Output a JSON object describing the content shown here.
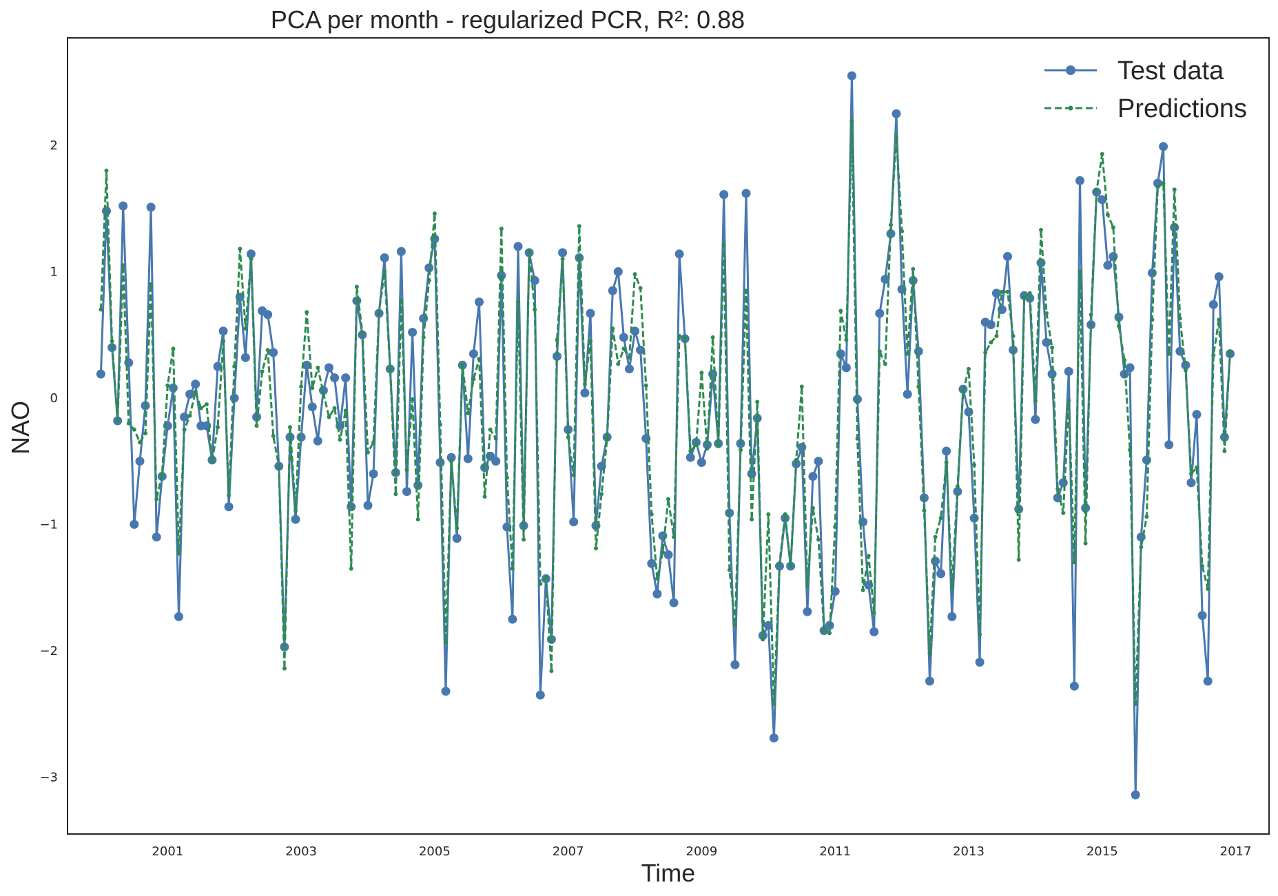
{
  "chart_data": {
    "type": "line",
    "title": "PCA per month - regularized PCR, R²: 0.88",
    "xlabel": "Time",
    "ylabel": "NAO",
    "xlim": [
      1999.5,
      2017.5
    ],
    "ylim": [
      -3.45,
      2.85
    ],
    "x_ticks": [
      2001,
      2003,
      2005,
      2007,
      2009,
      2011,
      2013,
      2015,
      2017
    ],
    "y_ticks": [
      -3,
      -2,
      -1,
      0,
      1,
      2
    ],
    "y_tick_labels": [
      "−3",
      "−2",
      "−1",
      "0",
      "1",
      "2"
    ],
    "x_start": 2000.0,
    "x_step_years": 0.0833333,
    "grid": false,
    "legend_position": "upper-right",
    "series": [
      {
        "name": "Test data",
        "color": "#4878b0",
        "style": "solid-circle",
        "values": [
          0.19,
          1.48,
          0.4,
          -0.18,
          1.52,
          0.28,
          -1.0,
          -0.5,
          -0.06,
          1.51,
          -1.1,
          -0.62,
          -0.22,
          0.08,
          -1.73,
          -0.15,
          0.03,
          0.11,
          -0.22,
          -0.22,
          -0.49,
          0.25,
          0.53,
          -0.86,
          0.0,
          0.8,
          0.32,
          1.14,
          -0.15,
          0.69,
          0.66,
          0.36,
          -0.54,
          -1.97,
          -0.31,
          -0.96,
          -0.31,
          0.26,
          -0.07,
          -0.34,
          0.06,
          0.24,
          0.16,
          -0.22,
          0.16,
          -0.86,
          0.77,
          0.5,
          -0.85,
          -0.6,
          0.67,
          1.11,
          0.23,
          -0.59,
          1.16,
          -0.74,
          0.52,
          -0.69,
          0.63,
          1.03,
          1.26,
          -0.51,
          -2.32,
          -0.47,
          -1.11,
          0.26,
          -0.48,
          0.35,
          0.76,
          -0.55,
          -0.46,
          -0.5,
          0.97,
          -1.02,
          -1.75,
          1.2,
          -1.01,
          1.15,
          0.93,
          -2.35,
          -1.43,
          -1.91,
          0.33,
          1.15,
          -0.25,
          -0.98,
          1.11,
          0.04,
          0.67,
          -1.01,
          -0.54,
          -0.31,
          0.85,
          1.0,
          0.48,
          0.23,
          0.53,
          0.38,
          -0.32,
          -1.31,
          -1.55,
          -1.09,
          -1.24,
          -1.62,
          1.14,
          0.47,
          -0.47,
          -0.35,
          -0.51,
          -0.37,
          0.19,
          -0.36,
          1.61,
          -0.91,
          -2.11,
          -0.36,
          1.62,
          -0.6,
          -0.16,
          -1.88,
          -1.8,
          -2.69,
          -1.33,
          -0.95,
          -1.33,
          -0.52,
          -0.39,
          -1.69,
          -0.62,
          -0.5,
          -1.84,
          -1.8,
          -1.53,
          0.35,
          0.24,
          2.55,
          -0.01,
          -0.98,
          -1.48,
          -1.85,
          0.67,
          0.94,
          1.3,
          2.25,
          0.86,
          0.03,
          0.93,
          0.37,
          -0.79,
          -2.24,
          -1.29,
          -1.39,
          -0.42,
          -1.73,
          -0.74,
          0.07,
          -0.11,
          -0.95,
          -2.09,
          0.6,
          0.58,
          0.83,
          0.7,
          1.12,
          0.38,
          -0.88,
          0.81,
          0.79,
          -0.17,
          1.07,
          0.44,
          0.19,
          -0.79,
          -0.67,
          0.21,
          -2.28,
          1.72,
          -0.87,
          0.58,
          1.63,
          1.57,
          1.05,
          1.12,
          0.64,
          0.19,
          0.24,
          -3.14,
          -1.1,
          -0.49,
          0.99,
          1.7,
          1.99,
          -0.37,
          1.35,
          0.37,
          0.26,
          -0.67,
          -0.13,
          -1.72,
          -2.24,
          0.74,
          0.96,
          -0.31,
          0.35
        ]
      },
      {
        "name": "Predictions",
        "color": "#2e8b4f",
        "style": "dashed-dot",
        "values": [
          0.7,
          1.8,
          0.45,
          -0.18,
          1.05,
          -0.2,
          -0.25,
          -0.35,
          -0.28,
          0.9,
          -0.8,
          -0.6,
          0.1,
          0.39,
          -1.23,
          -0.25,
          -0.14,
          0.05,
          -0.08,
          -0.05,
          -0.5,
          -0.23,
          0.45,
          -0.77,
          0.25,
          1.18,
          0.55,
          1.1,
          -0.22,
          0.21,
          0.38,
          -0.3,
          -0.54,
          -2.14,
          -0.23,
          -0.89,
          0.09,
          0.68,
          0.08,
          0.24,
          0.04,
          -0.15,
          -0.08,
          -0.33,
          -0.1,
          -1.35,
          0.88,
          0.52,
          -0.43,
          -0.35,
          0.68,
          1.0,
          0.23,
          -0.76,
          0.77,
          -0.57,
          -0.01,
          -0.96,
          0.48,
          0.93,
          1.46,
          -0.21,
          -1.93,
          -0.5,
          -1.03,
          0.26,
          -0.12,
          0.15,
          0.31,
          -0.78,
          -0.25,
          -0.32,
          1.34,
          -0.63,
          -1.35,
          0.76,
          -1.12,
          1.16,
          0.7,
          -1.47,
          -1.42,
          -2.16,
          0.46,
          1.1,
          -0.31,
          -0.61,
          1.36,
          0.11,
          0.45,
          -1.19,
          -0.76,
          -0.32,
          0.55,
          0.27,
          0.39,
          0.32,
          0.98,
          0.87,
          0.1,
          -0.92,
          -1.43,
          -1.22,
          -0.8,
          -1.1,
          0.49,
          0.48,
          -0.42,
          -0.37,
          0.2,
          -0.4,
          0.48,
          -0.38,
          1.21,
          -1.36,
          -1.8,
          -0.41,
          0.85,
          -0.96,
          -0.03,
          -1.91,
          -0.92,
          -2.42,
          -1.31,
          -0.92,
          -1.33,
          -0.49,
          0.09,
          -1.49,
          -0.87,
          -1.12,
          -1.84,
          -1.86,
          -1.02,
          0.69,
          0.46,
          2.19,
          -0.32,
          -1.52,
          -1.25,
          -1.7,
          0.37,
          0.27,
          1.37,
          2.07,
          1.32,
          0.35,
          1.02,
          0.09,
          -0.89,
          -2.02,
          -1.1,
          -0.95,
          -0.51,
          -1.5,
          -0.7,
          0.05,
          0.23,
          -0.53,
          -1.87,
          0.36,
          0.44,
          0.49,
          0.84,
          0.84,
          0.49,
          -1.28,
          0.8,
          0.83,
          -0.02,
          1.33,
          0.67,
          0.4,
          -0.72,
          -0.91,
          -0.02,
          -1.3,
          1.0,
          -1.15,
          0.66,
          1.64,
          1.93,
          1.45,
          1.35,
          0.57,
          0.3,
          -0.41,
          -2.42,
          -1.18,
          -0.94,
          0.62,
          1.67,
          1.7,
          0.35,
          1.65,
          0.63,
          0.22,
          -0.6,
          -0.55,
          -1.33,
          -1.51,
          0.34,
          0.62,
          -0.42,
          0.37
        ]
      }
    ]
  }
}
